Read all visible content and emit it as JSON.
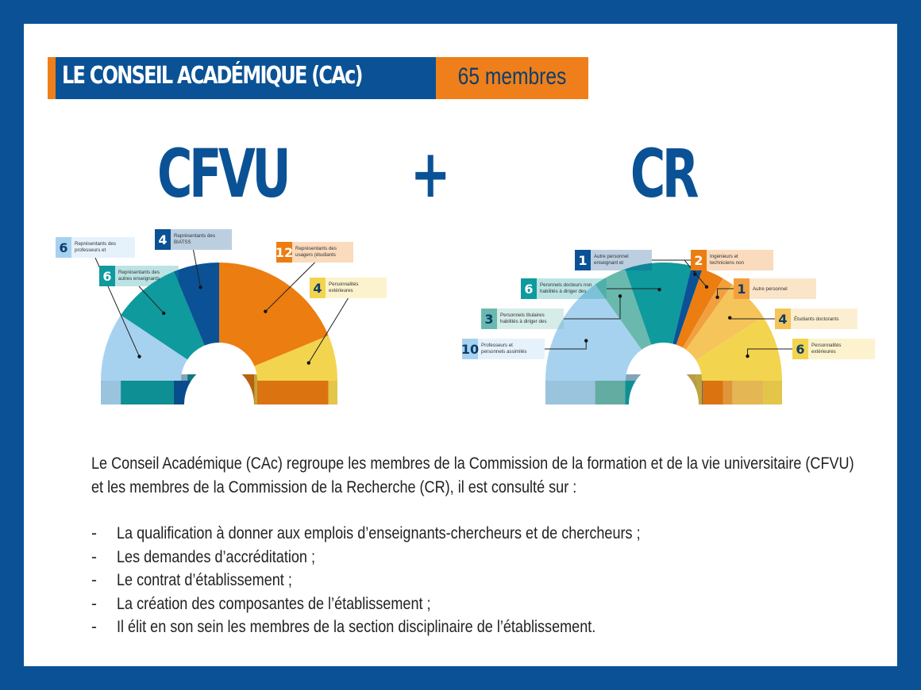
{
  "header": {
    "title": "LE CONSEIL ACADÉMIQUE (CAc)",
    "member_count": "65 membres"
  },
  "formula": {
    "left": "CFVU",
    "operator": "+",
    "right": "CR"
  },
  "chart_data": [
    {
      "type": "pie",
      "variant": "semicircle-parliament",
      "segments": [
        {
          "label": "Représentants des professeurs et personnels assimilés",
          "value": 6,
          "color": "#a6d2ef"
        },
        {
          "label": "Représentants des autres enseignants",
          "value": 6,
          "color": "#0f9a9e"
        },
        {
          "label": "Représentants des BIATSS",
          "value": 4,
          "color": "#0a5295"
        },
        {
          "label": "Représentants des usagers (étudiants dont FC)",
          "value": 12,
          "color": "#ec7d11"
        },
        {
          "label": "Personnalités extérieures",
          "value": 4,
          "color": "#f3d44e"
        }
      ]
    },
    {
      "type": "pie",
      "variant": "semicircle-parliament",
      "segments": [
        {
          "label": "Professeurs et personnels assimilés",
          "value": 10,
          "color": "#a6d2ef"
        },
        {
          "label": "Personnels titulaires habilités à diriger des recherches",
          "value": 3,
          "color": "#6ab9ae"
        },
        {
          "label": "Peronnels docteurs non habilités à diriger des recherches",
          "value": 6,
          "color": "#0f9a9e"
        },
        {
          "label": "Autre personnel enseignant et chercheur",
          "value": 1,
          "color": "#0a5295"
        },
        {
          "label": "Ingénieurs et techniciens non docteurs",
          "value": 2,
          "color": "#ec7d11"
        },
        {
          "label": "Autre personnel",
          "value": 1,
          "color": "#f2a03e"
        },
        {
          "label": "Étudiants doctorants",
          "value": 4,
          "color": "#f5c45a"
        },
        {
          "label": "Personnalités extérieures",
          "value": 6,
          "color": "#f3d44e"
        }
      ]
    }
  ],
  "description": {
    "line1": "Le Conseil Académique (CAc) regroupe les membres de la Commission de la formation et de la vie universitaire (CFVU)",
    "line2": "et les membres de la Commission de la Recherche (CR), il est consulté sur :"
  },
  "bullets": [
    "La qualification à donner aux emplois d’enseignants-chercheurs et de chercheurs ;",
    "Les demandes d’accréditation ;",
    "Le contrat d’établissement ;",
    "La création des composantes de l’établissement ;",
    "Il élit en son sein les membres de la section disciplinaire de l’établissement."
  ],
  "bullet_marker": "-"
}
